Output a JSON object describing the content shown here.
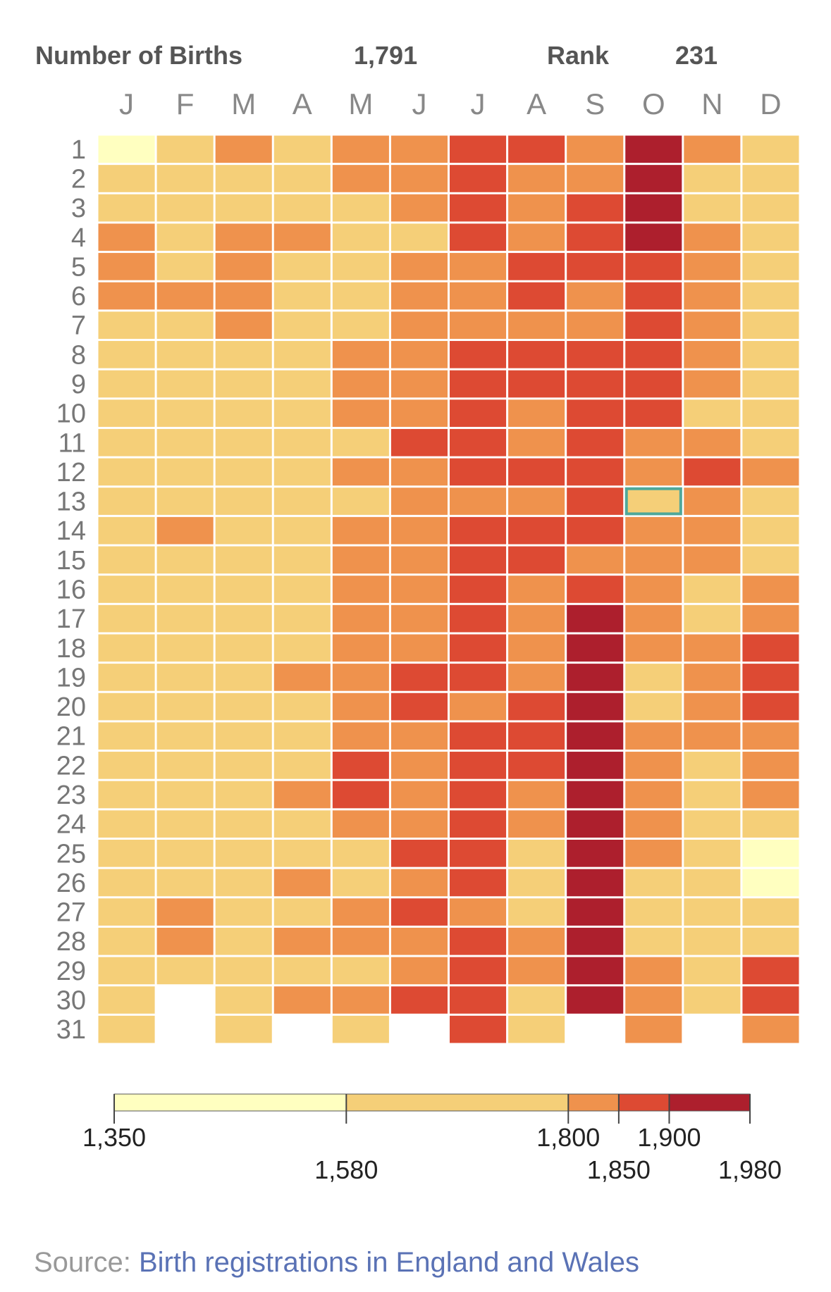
{
  "header": {
    "births_label": "Number of Births",
    "births_value": "1,791",
    "rank_label": "Rank",
    "rank_value": "231"
  },
  "colors": {
    "bin1": "#ffffc0",
    "bin2": "#f5cf78",
    "bin3": "#ef924d",
    "bin4": "#dd4a33",
    "bin5": "#ad1f2d",
    "highlight": "#4fa89a",
    "grid_line": "#ffffff"
  },
  "chart_data": {
    "type": "heatmap",
    "x_categories": [
      "J",
      "F",
      "M",
      "A",
      "M",
      "J",
      "J",
      "A",
      "S",
      "O",
      "N",
      "D"
    ],
    "y_categories": [
      "1",
      "2",
      "3",
      "4",
      "5",
      "6",
      "7",
      "8",
      "9",
      "10",
      "11",
      "12",
      "13",
      "14",
      "15",
      "16",
      "17",
      "18",
      "19",
      "20",
      "21",
      "22",
      "23",
      "24",
      "25",
      "26",
      "27",
      "28",
      "29",
      "30",
      "31"
    ],
    "value_encoding": "color bin index (1-5) corresponding to legend ranges",
    "bins": [
      {
        "bin": 1,
        "range": [
          1350,
          1580
        ]
      },
      {
        "bin": 2,
        "range": [
          1580,
          1800
        ]
      },
      {
        "bin": 3,
        "range": [
          1800,
          1850
        ]
      },
      {
        "bin": 4,
        "range": [
          1850,
          1900
        ]
      },
      {
        "bin": 5,
        "range": [
          1900,
          1980
        ]
      }
    ],
    "rows": [
      [
        1,
        2,
        3,
        2,
        3,
        3,
        4,
        4,
        3,
        5,
        3,
        2
      ],
      [
        2,
        2,
        2,
        2,
        3,
        3,
        4,
        3,
        3,
        5,
        2,
        2
      ],
      [
        2,
        2,
        2,
        2,
        2,
        3,
        4,
        3,
        4,
        5,
        2,
        2
      ],
      [
        3,
        2,
        3,
        3,
        2,
        2,
        4,
        3,
        4,
        5,
        3,
        2
      ],
      [
        3,
        2,
        3,
        2,
        2,
        3,
        3,
        4,
        4,
        4,
        3,
        2
      ],
      [
        3,
        3,
        3,
        2,
        2,
        3,
        3,
        4,
        3,
        4,
        3,
        2
      ],
      [
        2,
        2,
        3,
        2,
        2,
        3,
        3,
        3,
        3,
        4,
        3,
        2
      ],
      [
        2,
        2,
        2,
        2,
        3,
        3,
        4,
        4,
        4,
        4,
        3,
        2
      ],
      [
        2,
        2,
        2,
        2,
        3,
        3,
        4,
        4,
        4,
        4,
        3,
        2
      ],
      [
        2,
        2,
        2,
        2,
        3,
        3,
        4,
        3,
        4,
        4,
        2,
        2
      ],
      [
        2,
        2,
        2,
        2,
        2,
        4,
        4,
        3,
        4,
        3,
        3,
        2
      ],
      [
        2,
        2,
        2,
        2,
        3,
        3,
        4,
        4,
        4,
        3,
        4,
        3
      ],
      [
        2,
        2,
        2,
        2,
        2,
        3,
        3,
        3,
        4,
        2,
        3,
        2
      ],
      [
        2,
        3,
        2,
        2,
        3,
        3,
        4,
        4,
        4,
        3,
        3,
        2
      ],
      [
        2,
        2,
        2,
        2,
        3,
        3,
        4,
        4,
        3,
        3,
        3,
        2
      ],
      [
        2,
        2,
        2,
        2,
        3,
        3,
        4,
        3,
        4,
        3,
        2,
        3
      ],
      [
        2,
        2,
        2,
        2,
        3,
        3,
        4,
        3,
        5,
        3,
        2,
        3
      ],
      [
        2,
        2,
        2,
        2,
        3,
        3,
        4,
        3,
        5,
        3,
        3,
        4
      ],
      [
        2,
        2,
        2,
        3,
        3,
        4,
        4,
        3,
        5,
        2,
        3,
        4
      ],
      [
        2,
        2,
        2,
        2,
        3,
        4,
        3,
        4,
        5,
        2,
        3,
        4
      ],
      [
        2,
        2,
        2,
        2,
        3,
        3,
        4,
        4,
        5,
        3,
        3,
        3
      ],
      [
        2,
        2,
        2,
        2,
        4,
        3,
        4,
        4,
        5,
        3,
        2,
        3
      ],
      [
        2,
        2,
        2,
        3,
        4,
        3,
        4,
        3,
        5,
        3,
        2,
        3
      ],
      [
        2,
        2,
        2,
        2,
        3,
        3,
        4,
        3,
        5,
        3,
        2,
        2
      ],
      [
        2,
        2,
        2,
        2,
        2,
        4,
        4,
        2,
        5,
        3,
        2,
        1
      ],
      [
        2,
        2,
        2,
        3,
        2,
        3,
        4,
        2,
        5,
        2,
        2,
        1
      ],
      [
        2,
        3,
        2,
        2,
        3,
        4,
        3,
        2,
        5,
        2,
        2,
        2
      ],
      [
        2,
        3,
        2,
        3,
        3,
        3,
        4,
        3,
        5,
        2,
        2,
        2
      ],
      [
        2,
        2,
        2,
        2,
        2,
        3,
        4,
        3,
        5,
        3,
        2,
        4
      ],
      [
        2,
        0,
        2,
        3,
        3,
        4,
        4,
        2,
        5,
        3,
        2,
        4
      ],
      [
        2,
        0,
        2,
        0,
        2,
        0,
        4,
        2,
        0,
        3,
        0,
        3
      ]
    ],
    "highlighted_cell": {
      "day": "13",
      "month": "O"
    },
    "legend": {
      "tick_values": [
        1350,
        1580,
        1800,
        1850,
        1900,
        1980
      ],
      "tick_labels": [
        "1,350",
        "1,580",
        "1,800",
        "1,850",
        "1,900",
        "1,980"
      ]
    }
  },
  "source": {
    "prefix": "Source: ",
    "link_text": "Birth registrations in England and Wales"
  }
}
